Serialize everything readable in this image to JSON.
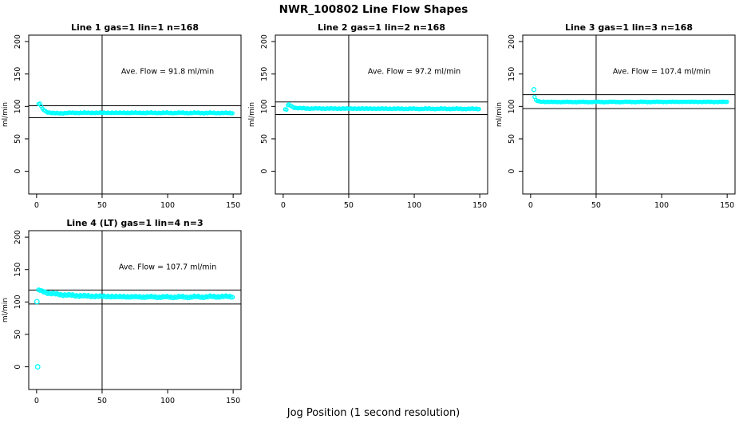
{
  "title": "NWR_100802  Line Flow Shapes",
  "xlabel": "Jog Position (1 second resolution)",
  "chart_data": {
    "type": "scatter",
    "title": "NWR_100802  Line Flow Shapes",
    "xlabel": "Jog Position (1 second resolution)",
    "ylabel": "ml/min",
    "marker": {
      "shape": "open-circle",
      "color": "#00ffff"
    },
    "axes": {
      "xlim": [
        0,
        150
      ],
      "ylim": [
        0,
        200
      ],
      "xticks": [
        0,
        50,
        100,
        150
      ],
      "yticks": [
        0,
        50,
        100,
        150,
        200
      ],
      "vline_x": 50,
      "grid": false,
      "legend": "none"
    },
    "plots": [
      {
        "id": "line-1",
        "title": "Line 1 gas=1 lin=1 n=168",
        "ave_flow": 91.8,
        "annotation": "Ave. Flow =  91.8  ml/min",
        "ref_lines": {
          "upper": 101.0,
          "lower": 82.6
        },
        "marker_radius": 2.0,
        "noise": 0.9,
        "keypoints": [
          [
            1.5,
            103.5
          ],
          [
            2.5,
            104.5
          ],
          [
            3.5,
            100.0
          ],
          [
            4.5,
            96.5
          ],
          [
            6,
            93.5
          ],
          [
            8,
            91.5
          ],
          [
            11,
            90.0
          ],
          [
            14,
            89.3
          ],
          [
            20,
            89.8
          ],
          [
            30,
            90.2
          ],
          [
            60,
            90.2
          ],
          [
            100,
            90.1
          ],
          [
            150,
            89.9
          ]
        ],
        "outliers": []
      },
      {
        "id": "line-2",
        "title": "Line 2 gas=1 lin=2 n=168",
        "ave_flow": 97.2,
        "annotation": "Ave. Flow =  97.2  ml/min",
        "ref_lines": {
          "upper": 106.9,
          "lower": 87.5
        },
        "marker_radius": 2.0,
        "noise": 0.8,
        "keypoints": [
          [
            1.5,
            95.5
          ],
          [
            2.5,
            95.0
          ],
          [
            3.5,
            101.5
          ],
          [
            4.5,
            103.0
          ],
          [
            5.5,
            101.5
          ],
          [
            7,
            99.5
          ],
          [
            9,
            98.0
          ],
          [
            12,
            97.2
          ],
          [
            20,
            96.8
          ],
          [
            60,
            96.6
          ],
          [
            100,
            96.4
          ],
          [
            150,
            96.3
          ]
        ],
        "outliers": []
      },
      {
        "id": "line-3",
        "title": "Line 3 gas=1 lin=3 n=168",
        "ave_flow": 107.4,
        "annotation": "Ave. Flow =  107.4  ml/min",
        "ref_lines": {
          "upper": 118.1,
          "lower": 96.7
        },
        "marker_radius": 2.0,
        "noise": 0.7,
        "keypoints": [
          [
            3,
            114.5
          ],
          [
            4,
            110.0
          ],
          [
            5,
            108.5
          ],
          [
            7,
            107.5
          ],
          [
            12,
            107.0
          ],
          [
            40,
            106.9
          ],
          [
            80,
            107.0
          ],
          [
            120,
            107.1
          ],
          [
            150,
            107.0
          ]
        ],
        "outliers": [
          [
            2.5,
            126.0
          ]
        ]
      },
      {
        "id": "line-4-lt",
        "title": "Line 4 (LT) gas=1 lin=4 n=3",
        "ave_flow": 107.7,
        "annotation": "Ave. Flow =  107.7  ml/min",
        "ref_lines": {
          "upper": 118.5,
          "lower": 96.9
        },
        "marker_radius": 2.3,
        "noise": 1.8,
        "keypoints": [
          [
            1.5,
            118.5
          ],
          [
            3,
            117.5
          ],
          [
            6,
            115.5
          ],
          [
            10,
            113.5
          ],
          [
            15,
            112.0
          ],
          [
            22,
            110.8
          ],
          [
            30,
            109.8
          ],
          [
            40,
            109.0
          ],
          [
            55,
            108.3
          ],
          [
            75,
            107.8
          ],
          [
            95,
            107.6
          ],
          [
            115,
            107.6
          ],
          [
            130,
            107.9
          ],
          [
            142,
            108.3
          ],
          [
            150,
            108.2
          ]
        ],
        "outliers": [
          [
            0.3,
            100.5
          ],
          [
            0.8,
            0.0
          ]
        ]
      }
    ]
  }
}
